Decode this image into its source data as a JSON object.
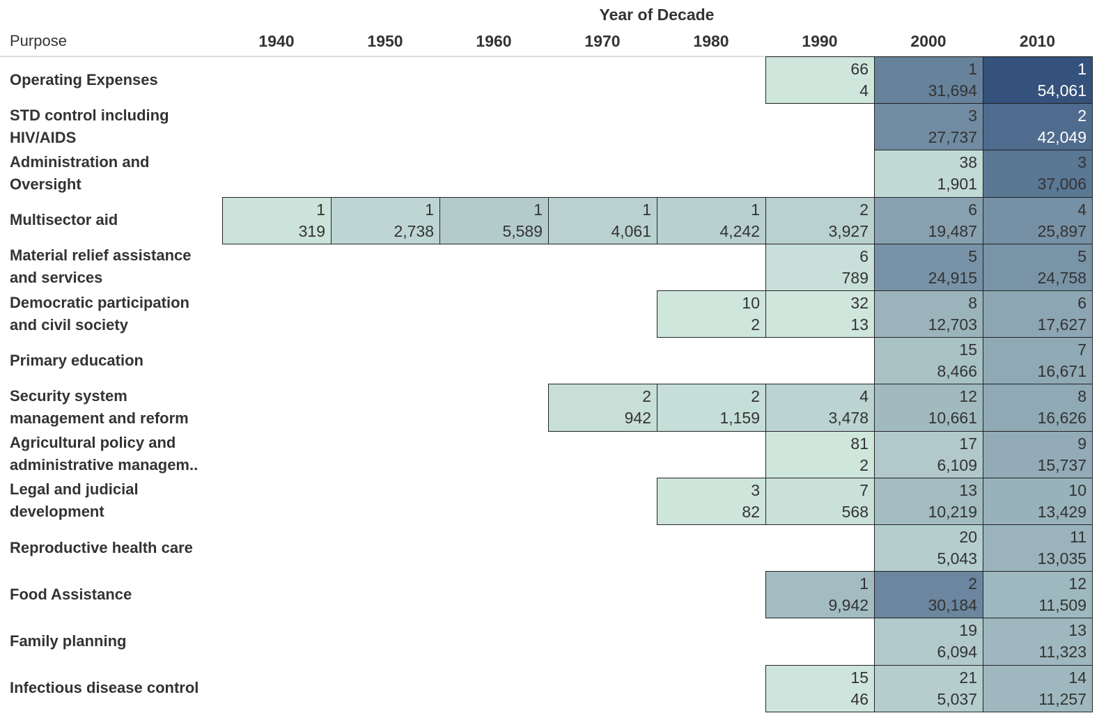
{
  "chart_data": {
    "type": "heatmap",
    "title": "",
    "column_title": "Year of Decade",
    "row_header": "Purpose",
    "columns": [
      "1940",
      "1950",
      "1960",
      "1970",
      "1980",
      "1990",
      "2000",
      "2010"
    ],
    "color_scale": {
      "low": "#cfe6dd",
      "high": "#34527c",
      "metric": "value"
    },
    "rows": [
      {
        "label": "Operating Expenses",
        "cells": {
          "1990": {
            "rank": "66",
            "value": "4"
          },
          "2000": {
            "rank": "1",
            "value": "31,694"
          },
          "2010": {
            "rank": "1",
            "value": "54,061"
          }
        }
      },
      {
        "label": "STD control including HIV/AIDS",
        "cells": {
          "2000": {
            "rank": "3",
            "value": "27,737"
          },
          "2010": {
            "rank": "2",
            "value": "42,049"
          }
        }
      },
      {
        "label": "Administration and Oversight",
        "cells": {
          "2000": {
            "rank": "38",
            "value": "1,901"
          },
          "2010": {
            "rank": "3",
            "value": "37,006"
          }
        }
      },
      {
        "label": "Multisector aid",
        "cells": {
          "1940": {
            "rank": "1",
            "value": "319"
          },
          "1950": {
            "rank": "1",
            "value": "2,738"
          },
          "1960": {
            "rank": "1",
            "value": "5,589"
          },
          "1970": {
            "rank": "1",
            "value": "4,061"
          },
          "1980": {
            "rank": "1",
            "value": "4,242"
          },
          "1990": {
            "rank": "2",
            "value": "3,927"
          },
          "2000": {
            "rank": "6",
            "value": "19,487"
          },
          "2010": {
            "rank": "4",
            "value": "25,897"
          }
        }
      },
      {
        "label": "Material relief assistance and services",
        "cells": {
          "1990": {
            "rank": "6",
            "value": "789"
          },
          "2000": {
            "rank": "5",
            "value": "24,915"
          },
          "2010": {
            "rank": "5",
            "value": "24,758"
          }
        }
      },
      {
        "label": "Democratic participation and civil society",
        "cells": {
          "1980": {
            "rank": "10",
            "value": "2"
          },
          "1990": {
            "rank": "32",
            "value": "13"
          },
          "2000": {
            "rank": "8",
            "value": "12,703"
          },
          "2010": {
            "rank": "6",
            "value": "17,627"
          }
        }
      },
      {
        "label": "Primary education",
        "cells": {
          "2000": {
            "rank": "15",
            "value": "8,466"
          },
          "2010": {
            "rank": "7",
            "value": "16,671"
          }
        }
      },
      {
        "label": "Security system management and reform",
        "cells": {
          "1970": {
            "rank": "2",
            "value": "942"
          },
          "1980": {
            "rank": "2",
            "value": "1,159"
          },
          "1990": {
            "rank": "4",
            "value": "3,478"
          },
          "2000": {
            "rank": "12",
            "value": "10,661"
          },
          "2010": {
            "rank": "8",
            "value": "16,626"
          }
        }
      },
      {
        "label": "Agricultural policy and administrative managem..",
        "cells": {
          "1990": {
            "rank": "81",
            "value": "2"
          },
          "2000": {
            "rank": "17",
            "value": "6,109"
          },
          "2010": {
            "rank": "9",
            "value": "15,737"
          }
        }
      },
      {
        "label": "Legal and judicial development",
        "cells": {
          "1980": {
            "rank": "3",
            "value": "82"
          },
          "1990": {
            "rank": "7",
            "value": "568"
          },
          "2000": {
            "rank": "13",
            "value": "10,219"
          },
          "2010": {
            "rank": "10",
            "value": "13,429"
          }
        }
      },
      {
        "label": "Reproductive health care",
        "cells": {
          "2000": {
            "rank": "20",
            "value": "5,043"
          },
          "2010": {
            "rank": "11",
            "value": "13,035"
          }
        }
      },
      {
        "label": "Food Assistance",
        "cells": {
          "1990": {
            "rank": "1",
            "value": "9,942"
          },
          "2000": {
            "rank": "2",
            "value": "30,184"
          },
          "2010": {
            "rank": "12",
            "value": "11,509"
          }
        }
      },
      {
        "label": "Family planning",
        "cells": {
          "2000": {
            "rank": "19",
            "value": "6,094"
          },
          "2010": {
            "rank": "13",
            "value": "11,323"
          }
        }
      },
      {
        "label": "Infectious disease control",
        "cells": {
          "1990": {
            "rank": "15",
            "value": "46"
          },
          "2000": {
            "rank": "21",
            "value": "5,037"
          },
          "2010": {
            "rank": "14",
            "value": "11,257"
          }
        }
      }
    ]
  }
}
